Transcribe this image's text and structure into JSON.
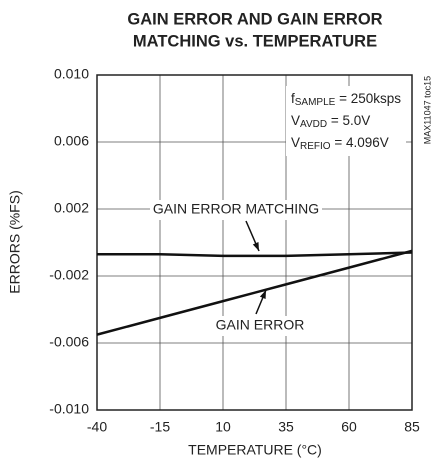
{
  "chart_data": {
    "type": "line",
    "title": [
      "GAIN ERROR AND GAIN ERROR",
      "MATCHING vs. TEMPERATURE"
    ],
    "xlabel": "TEMPERATURE (°C)",
    "ylabel": "ERRORS (%FS)",
    "side_label": "MAX11047 toc15",
    "conditions": [
      {
        "symbol": "f",
        "sub": "SAMPLE",
        "text": " = 250ksps"
      },
      {
        "symbol": "V",
        "sub": "AVDD",
        "text": " = 5.0V"
      },
      {
        "symbol": "V",
        "sub": "REFIO",
        "text": " = 4.096V"
      }
    ],
    "x": [
      -40,
      -15,
      10,
      35,
      60,
      85
    ],
    "series": [
      {
        "name": "GAIN ERROR MATCHING",
        "color": "#111111",
        "values": [
          -0.0007,
          -0.0007,
          -0.0008,
          -0.0008,
          -0.0007,
          -0.0006
        ]
      },
      {
        "name": "GAIN ERROR",
        "color": "#111111",
        "values": [
          -0.0055,
          -0.0045,
          -0.0035,
          -0.0025,
          -0.0015,
          -0.0005
        ]
      }
    ],
    "xlim": [
      -40,
      85
    ],
    "xticks": [
      -40,
      -15,
      10,
      35,
      60,
      85
    ],
    "ylim": [
      -0.01,
      0.01
    ],
    "yticks": [
      {
        "value": -0.01,
        "label": "-0.010"
      },
      -0.006,
      -0.002,
      0.002,
      0.006,
      {
        "value": 0.01,
        "label": "0.010"
      }
    ],
    "grid": true
  }
}
